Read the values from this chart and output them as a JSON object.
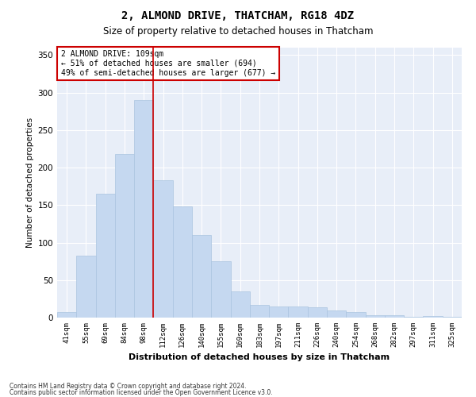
{
  "title": "2, ALMOND DRIVE, THATCHAM, RG18 4DZ",
  "subtitle": "Size of property relative to detached houses in Thatcham",
  "xlabel": "Distribution of detached houses by size in Thatcham",
  "ylabel": "Number of detached properties",
  "categories": [
    "41sqm",
    "55sqm",
    "69sqm",
    "84sqm",
    "98sqm",
    "112sqm",
    "126sqm",
    "140sqm",
    "155sqm",
    "169sqm",
    "183sqm",
    "197sqm",
    "211sqm",
    "226sqm",
    "240sqm",
    "254sqm",
    "268sqm",
    "282sqm",
    "297sqm",
    "311sqm",
    "325sqm"
  ],
  "values": [
    7,
    83,
    165,
    218,
    290,
    183,
    148,
    110,
    75,
    35,
    17,
    15,
    15,
    14,
    10,
    7,
    3,
    3,
    1,
    2,
    1
  ],
  "bar_color": "#c5d8f0",
  "bar_edge_color": "#aac4e0",
  "vline_x_idx": 4,
  "vline_color": "#cc0000",
  "annotation_text": "2 ALMOND DRIVE: 109sqm\n← 51% of detached houses are smaller (694)\n49% of semi-detached houses are larger (677) →",
  "annotation_box_color": "#ffffff",
  "annotation_box_edge": "#cc0000",
  "ylim": [
    0,
    360
  ],
  "yticks": [
    0,
    50,
    100,
    150,
    200,
    250,
    300,
    350
  ],
  "background_color": "#e8eef8",
  "grid_color": "#ffffff",
  "title_fontsize": 10,
  "subtitle_fontsize": 8.5,
  "footer_line1": "Contains HM Land Registry data © Crown copyright and database right 2024.",
  "footer_line2": "Contains public sector information licensed under the Open Government Licence v3.0."
}
